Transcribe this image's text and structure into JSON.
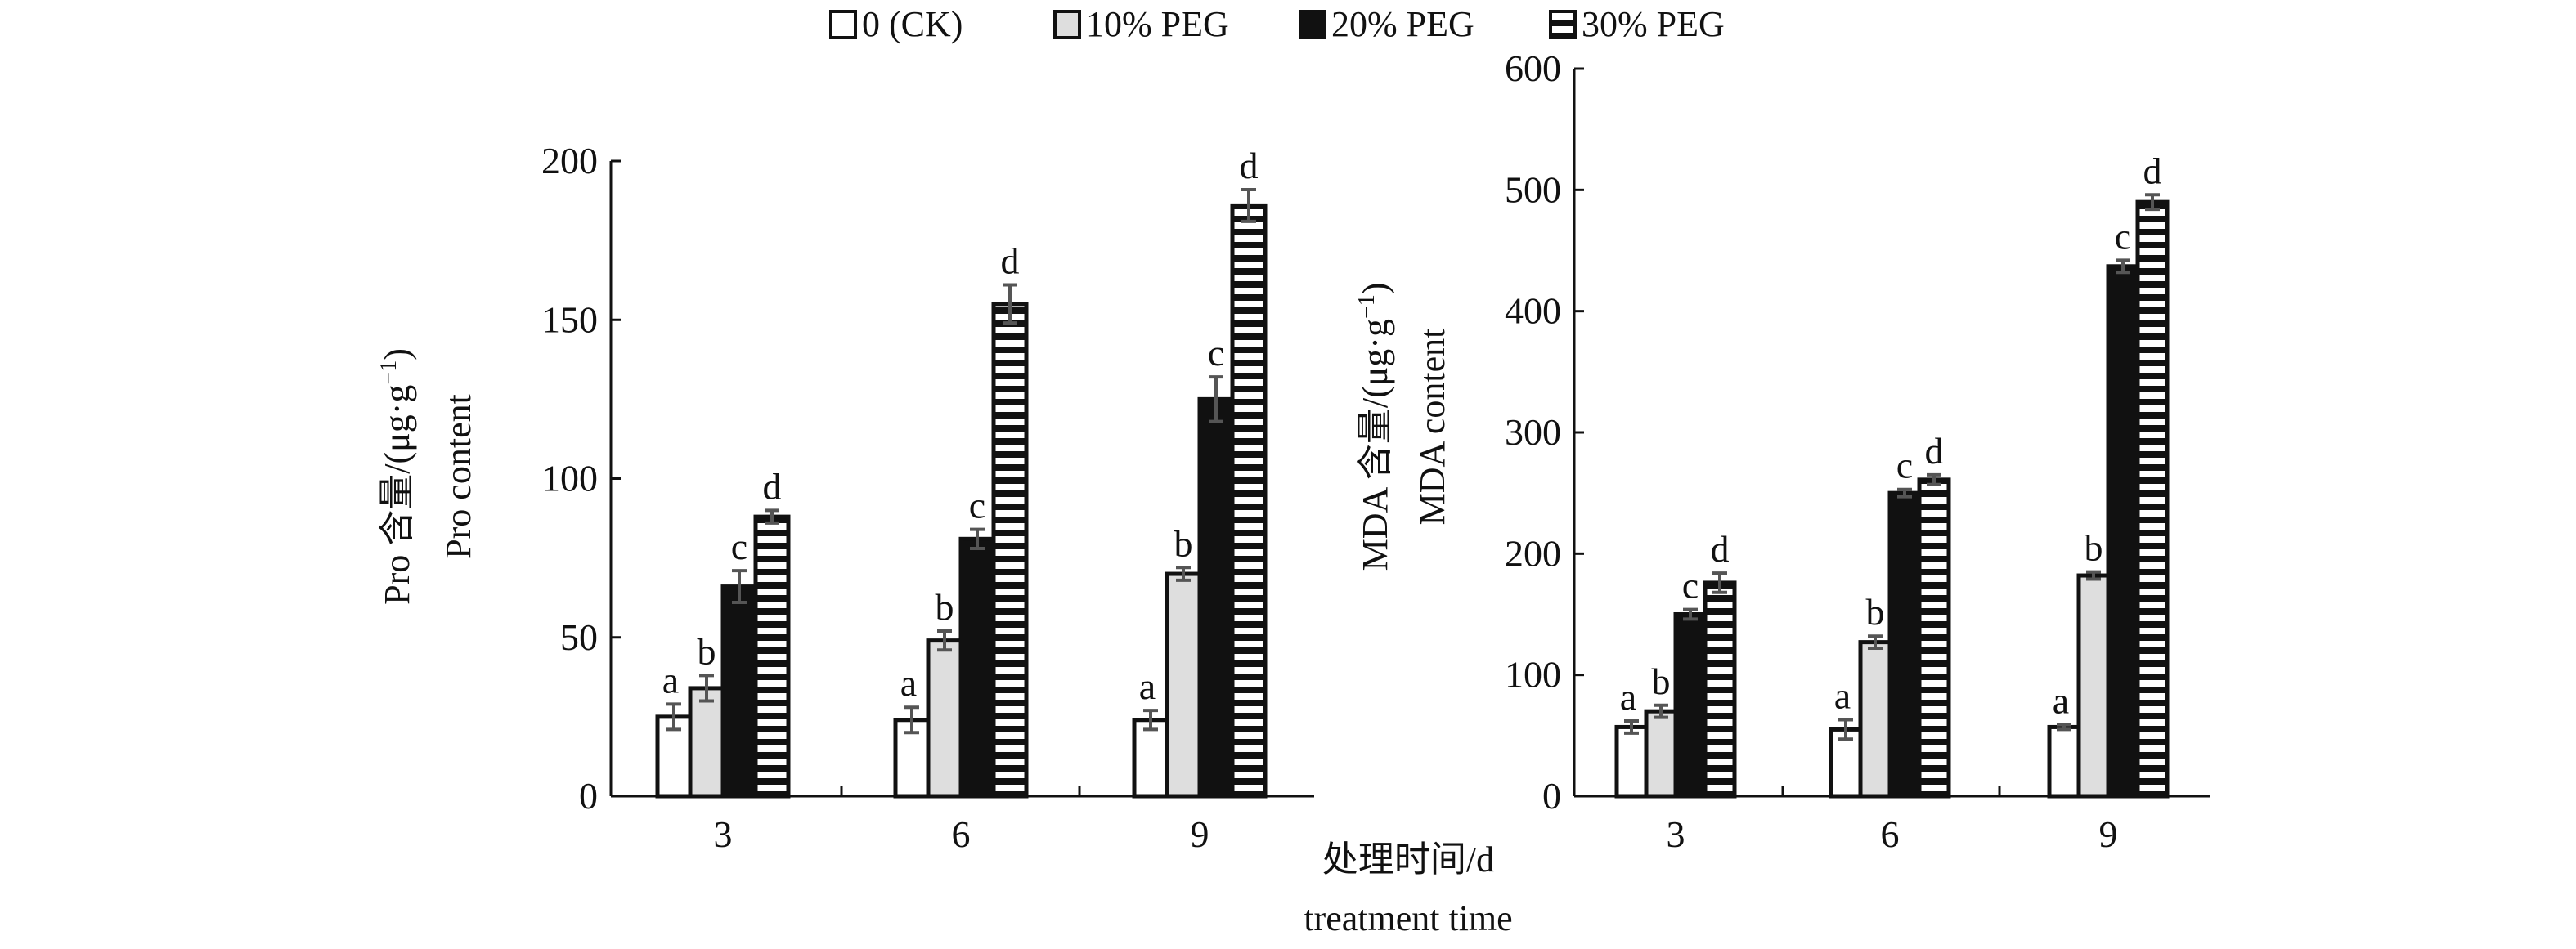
{
  "colors": {
    "ck": "#ffffff",
    "peg10": "#dedede",
    "peg20": "#111111",
    "peg30_stripe": "#111111",
    "error": "#555555",
    "axis": "#111111"
  },
  "legend": [
    {
      "label": "0 (CK)",
      "fill": "white"
    },
    {
      "label": "10% PEG",
      "fill": "lightgray"
    },
    {
      "label": "20% PEG",
      "fill": "black"
    },
    {
      "label": "30% PEG",
      "fill": "horizontal-stripes"
    }
  ],
  "xlabel": {
    "cn": "处理时间/d",
    "en": "treatment time"
  },
  "chart_data": [
    {
      "type": "bar",
      "title": "",
      "ylabel": {
        "cn": "Pro 含量/(μg·g",
        "sup": "−1",
        "close": ")",
        "en": "Pro content"
      },
      "categories": [
        "3",
        "6",
        "9"
      ],
      "ylim": [
        0,
        200
      ],
      "yticks": [
        0,
        50,
        100,
        150,
        200
      ],
      "series": [
        {
          "name": "0 (CK)",
          "values": [
            25,
            24,
            24
          ],
          "errors": [
            4,
            4,
            3
          ],
          "letters": [
            "a",
            "a",
            "a"
          ]
        },
        {
          "name": "10% PEG",
          "values": [
            34,
            49,
            70
          ],
          "errors": [
            4,
            3,
            2
          ],
          "letters": [
            "b",
            "b",
            "b"
          ]
        },
        {
          "name": "20% PEG",
          "values": [
            66,
            81,
            125
          ],
          "errors": [
            5,
            3,
            7
          ],
          "letters": [
            "c",
            "c",
            "c"
          ]
        },
        {
          "name": "30% PEG",
          "values": [
            88,
            155,
            186
          ],
          "errors": [
            2,
            6,
            5
          ],
          "letters": [
            "d",
            "d",
            "d"
          ]
        }
      ]
    },
    {
      "type": "bar",
      "title": "",
      "ylabel": {
        "cn": "MDA 含量/(μg·g",
        "sup": "−1",
        "close": ")",
        "en": "MDA content"
      },
      "categories": [
        "3",
        "6",
        "9"
      ],
      "ylim": [
        0,
        600
      ],
      "yticks": [
        0,
        100,
        200,
        300,
        400,
        500,
        600
      ],
      "series": [
        {
          "name": "0 (CK)",
          "values": [
            57,
            55,
            57
          ],
          "errors": [
            5,
            8,
            2
          ],
          "letters": [
            "a",
            "a",
            "a"
          ]
        },
        {
          "name": "10% PEG",
          "values": [
            70,
            127,
            182
          ],
          "errors": [
            5,
            5,
            3
          ],
          "letters": [
            "b",
            "b",
            "b"
          ]
        },
        {
          "name": "20% PEG",
          "values": [
            150,
            250,
            437
          ],
          "errors": [
            4,
            3,
            5
          ],
          "letters": [
            "c",
            "c",
            "c"
          ]
        },
        {
          "name": "30% PEG",
          "values": [
            176,
            261,
            490
          ],
          "errors": [
            8,
            4,
            6
          ],
          "letters": [
            "d",
            "d",
            "d"
          ]
        }
      ]
    }
  ]
}
